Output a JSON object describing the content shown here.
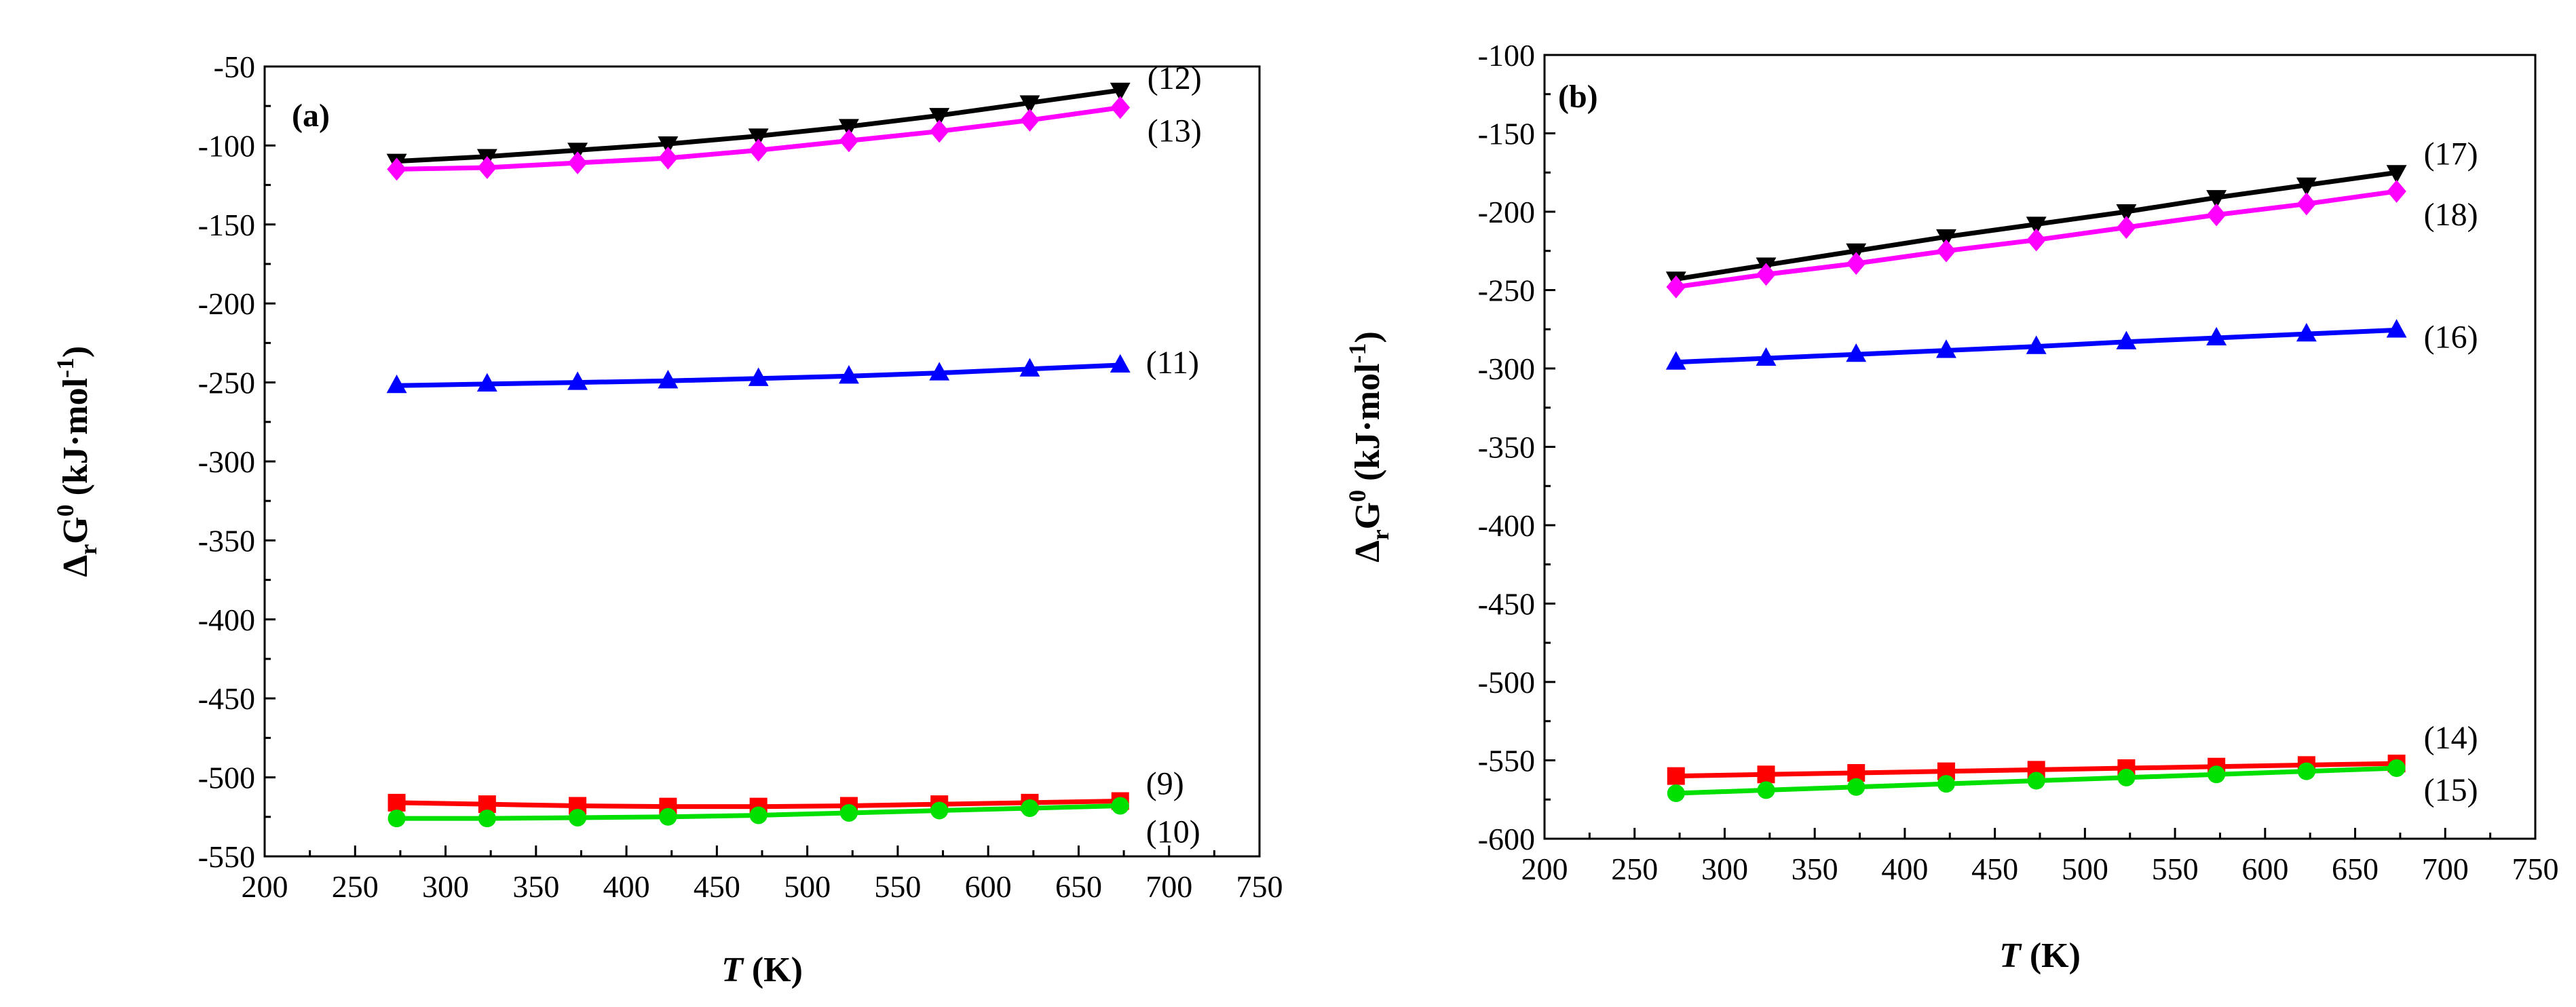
{
  "chart_data": [
    {
      "type": "line",
      "panel_label": "(a)",
      "xlabel_italic": "T",
      "xlabel_unit": " (K)",
      "ylabel_delta": "Δ",
      "ylabel_r": "r",
      "ylabel_G": "G",
      "ylabel_sup0": "0",
      "ylabel_unit": " (kJ·mol",
      "ylabel_unit_sup": "-1",
      "ylabel_close": ")",
      "xlim": [
        200,
        750
      ],
      "ylim": [
        -550,
        -50
      ],
      "xticks": [
        200,
        250,
        300,
        350,
        400,
        450,
        500,
        550,
        600,
        650,
        700,
        750
      ],
      "yticks": [
        -550,
        -500,
        -450,
        -400,
        -350,
        -300,
        -250,
        -200,
        -150,
        -100,
        -50
      ],
      "x": [
        273,
        323,
        373,
        423,
        473,
        523,
        573,
        623,
        673
      ],
      "series": [
        {
          "name": "(9)",
          "color": "#ff0000",
          "marker": "square",
          "values": [
            -516,
            -517,
            -518,
            -518.5,
            -518.5,
            -518,
            -517,
            -516,
            -515
          ]
        },
        {
          "name": "(10)",
          "color": "#00e000",
          "marker": "circle",
          "values": [
            -526,
            -526,
            -525.5,
            -525,
            -524,
            -522.5,
            -521,
            -519.5,
            -518
          ]
        },
        {
          "name": "(11)",
          "color": "#0000ff",
          "marker": "triangle-up",
          "values": [
            -252,
            -251,
            -250,
            -249,
            -247.5,
            -246,
            -244,
            -241.5,
            -239
          ]
        },
        {
          "name": "(12)",
          "color": "#000000",
          "marker": "triangle-down",
          "values": [
            -110,
            -107,
            -103,
            -99,
            -94,
            -88,
            -81,
            -73,
            -65
          ]
        },
        {
          "name": "(13)",
          "color": "#ff00ff",
          "marker": "diamond",
          "values": [
            -115,
            -114,
            -111,
            -108,
            -103,
            -97,
            -91,
            -84,
            -76
          ]
        }
      ]
    },
    {
      "type": "line",
      "panel_label": "(b)",
      "xlabel_italic": "T",
      "xlabel_unit": " (K)",
      "ylabel_delta": "Δ",
      "ylabel_r": "r",
      "ylabel_G": "G",
      "ylabel_sup0": "0",
      "ylabel_unit": " (kJ·mol",
      "ylabel_unit_sup": "-1",
      "ylabel_close": ")",
      "xlim": [
        200,
        750
      ],
      "ylim": [
        -600,
        -100
      ],
      "xticks": [
        200,
        250,
        300,
        350,
        400,
        450,
        500,
        550,
        600,
        650,
        700,
        750
      ],
      "yticks": [
        -600,
        -550,
        -500,
        -450,
        -400,
        -350,
        -300,
        -250,
        -200,
        -150,
        -100
      ],
      "x": [
        273,
        323,
        373,
        423,
        473,
        523,
        573,
        623,
        673
      ],
      "series": [
        {
          "name": "(14)",
          "color": "#ff0000",
          "marker": "square",
          "values": [
            -560,
            -559,
            -558,
            -557,
            -556,
            -555,
            -554,
            -553,
            -552
          ]
        },
        {
          "name": "(15)",
          "color": "#00e000",
          "marker": "circle",
          "values": [
            -571,
            -569,
            -567,
            -565,
            -563,
            -561,
            -559,
            -557,
            -555
          ]
        },
        {
          "name": "(16)",
          "color": "#0000ff",
          "marker": "triangle-up",
          "values": [
            -296,
            -293.5,
            -291,
            -288.5,
            -286,
            -283,
            -280.5,
            -278,
            -275.5
          ]
        },
        {
          "name": "(17)",
          "color": "#000000",
          "marker": "triangle-down",
          "values": [
            -243,
            -234,
            -225,
            -216,
            -208,
            -200,
            -191,
            -183,
            -175
          ]
        },
        {
          "name": "(18)",
          "color": "#ff00ff",
          "marker": "diamond",
          "values": [
            -248,
            -240,
            -233,
            -225,
            -218,
            -210,
            -202,
            -195,
            -187
          ]
        }
      ]
    }
  ]
}
